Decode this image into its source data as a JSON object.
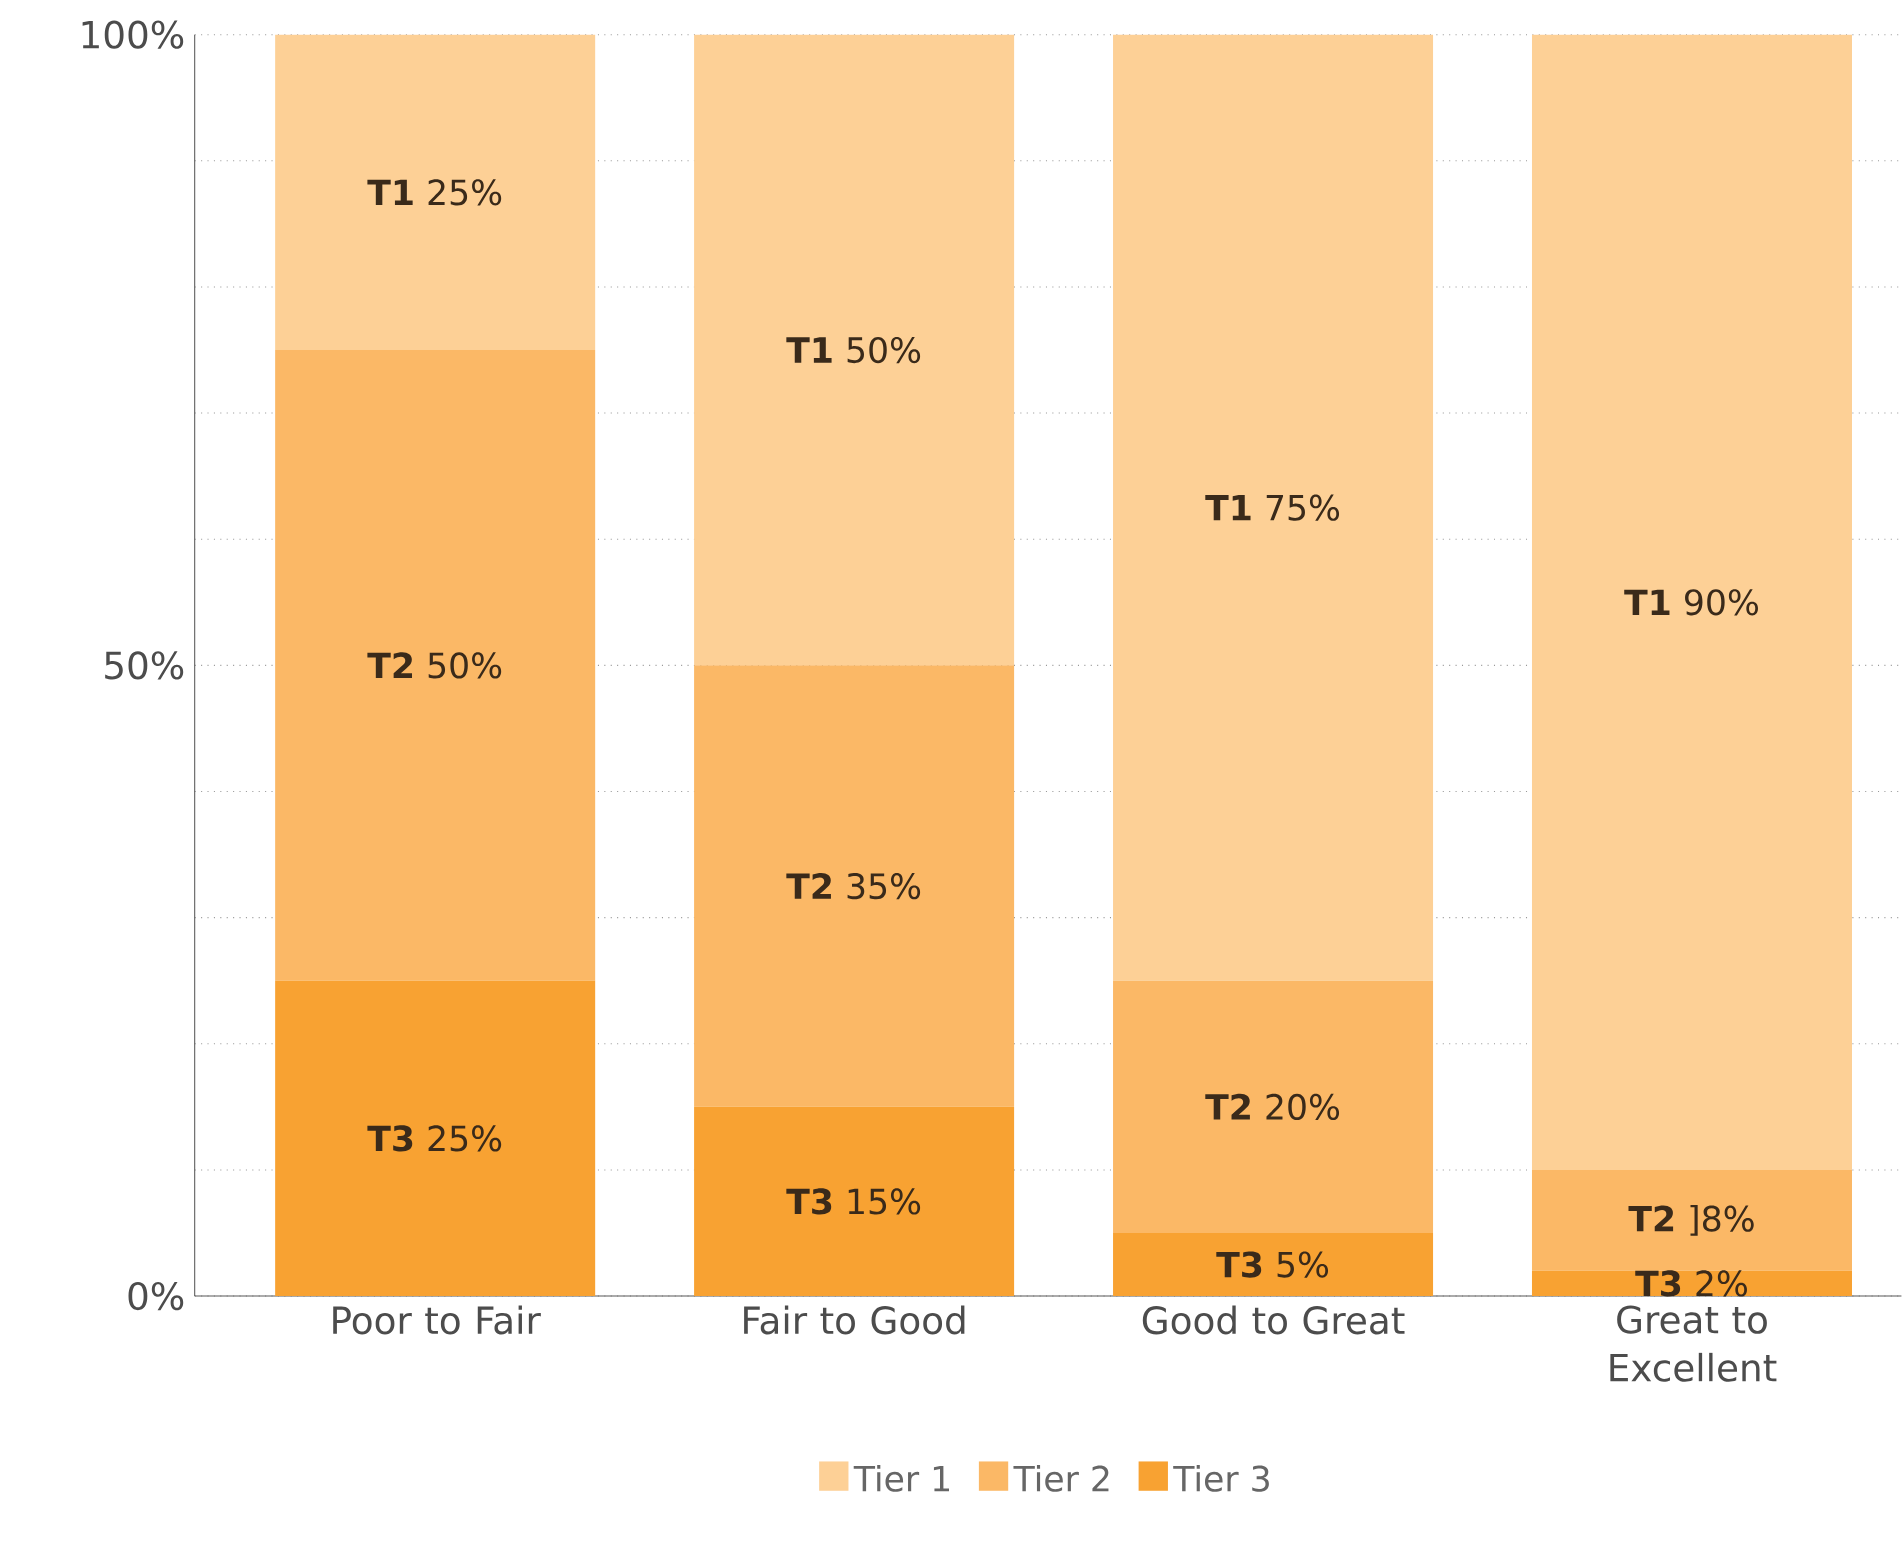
{
  "chart_data": {
    "type": "bar",
    "stacked": true,
    "categories": [
      "Poor to Fair",
      "Fair to Good",
      "Good to Great",
      "Great to Excellent"
    ],
    "series": [
      {
        "name": "Tier 3",
        "color": "#f8a232",
        "values": [
          25,
          15,
          5,
          2
        ],
        "value_labels": [
          "**T3** 25%",
          "**T3** 15%",
          "**T3** 5%",
          "**T3** 2%"
        ]
      },
      {
        "name": "Tier 2",
        "color": "#fbb866",
        "values": [
          50,
          35,
          20,
          8
        ],
        "value_labels": [
          "**T2** 50%",
          "**T2** 35%",
          "**T2** 20%",
          "**T2** ]8%"
        ]
      },
      {
        "name": "Tier 1",
        "color": "#fdd096",
        "values": [
          25,
          50,
          75,
          90
        ],
        "value_labels": [
          "**T1** 25%",
          "**T1** 50%",
          "**T1** 75%",
          "**T1** 90%"
        ]
      }
    ],
    "ylim": [
      0,
      100
    ],
    "yticks": [
      {
        "value": 0,
        "label": "0%"
      },
      {
        "value": 10,
        "label": null
      },
      {
        "value": 20,
        "label": null
      },
      {
        "value": 30,
        "label": null
      },
      {
        "value": 40,
        "label": null
      },
      {
        "value": 50,
        "label": "50%"
      },
      {
        "value": 60,
        "label": null
      },
      {
        "value": 70,
        "label": null
      },
      {
        "value": 80,
        "label": null
      },
      {
        "value": 90,
        "label": null
      },
      {
        "value": 100,
        "label": "100%"
      }
    ],
    "grid": "y",
    "legend": "bottom"
  }
}
